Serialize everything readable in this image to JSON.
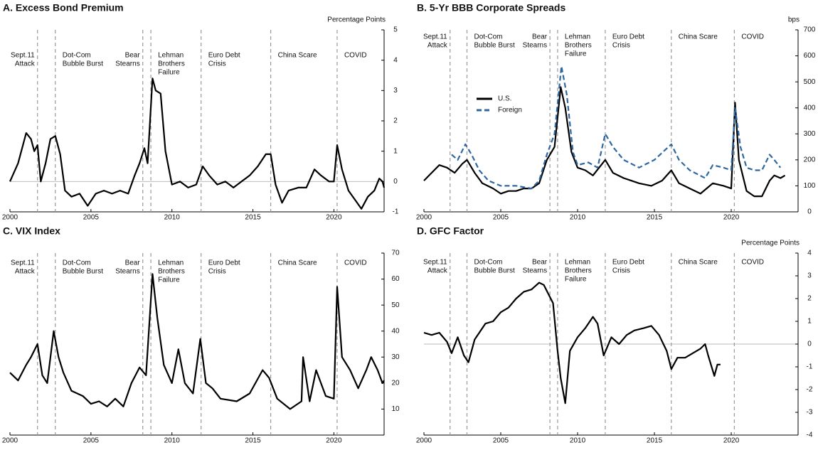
{
  "chart_data": [
    {
      "type": "line",
      "title": "A. Excess Bond Premium",
      "y_label": "Percentage Points",
      "xlim": [
        2000,
        2023.1
      ],
      "xticks": [
        2000,
        2005,
        2010,
        2015,
        2020
      ],
      "ylim": [
        -1,
        5
      ],
      "yticks": [
        -1,
        0,
        1,
        2,
        3,
        4,
        5
      ],
      "zero_line": true,
      "events": [
        {
          "x": 2001.7,
          "label": [
            "Sept.11",
            "Attack"
          ]
        },
        {
          "x": 2002.8,
          "label": [
            "Dot-Com",
            "Bubble Burst"
          ]
        },
        {
          "x": 2008.2,
          "label": [
            "Bear",
            "Stearns"
          ]
        },
        {
          "x": 2008.7,
          "label": [
            "Lehman",
            "Brothers",
            "Failure"
          ]
        },
        {
          "x": 2011.8,
          "label": [
            "Euro Debt",
            "Crisis"
          ]
        },
        {
          "x": 2016.1,
          "label": [
            "China Scare"
          ]
        },
        {
          "x": 2020.2,
          "label": [
            "COVID"
          ]
        }
      ],
      "series": [
        {
          "color": "#000000",
          "x": [
            2000,
            2000.5,
            2001,
            2001.3,
            2001.5,
            2001.7,
            2001.9,
            2002.2,
            2002.5,
            2002.8,
            2003.1,
            2003.4,
            2003.8,
            2004.3,
            2004.8,
            2005.3,
            2005.8,
            2006.3,
            2006.8,
            2007.3,
            2007.7,
            2008.0,
            2008.3,
            2008.5,
            2008.8,
            2009.0,
            2009.3,
            2009.6,
            2010.0,
            2010.5,
            2011.0,
            2011.5,
            2011.9,
            2012.3,
            2012.8,
            2013.3,
            2013.8,
            2014.3,
            2014.8,
            2015.3,
            2015.8,
            2016.1,
            2016.4,
            2016.8,
            2017.2,
            2017.8,
            2018.3,
            2018.8,
            2019.2,
            2019.7,
            2020.0,
            2020.2,
            2020.5,
            2020.9,
            2021.3,
            2021.7,
            2022.1,
            2022.5,
            2022.8,
            2023.0,
            2023.1
          ],
          "values": [
            0,
            0.6,
            1.6,
            1.4,
            1.0,
            1.2,
            0.0,
            0.6,
            1.4,
            1.5,
            0.9,
            -0.3,
            -0.5,
            -0.4,
            -0.8,
            -0.4,
            -0.3,
            -0.4,
            -0.3,
            -0.4,
            0.2,
            0.6,
            1.1,
            0.6,
            3.4,
            3.0,
            2.9,
            1.0,
            -0.1,
            0.0,
            -0.2,
            -0.1,
            0.5,
            0.2,
            -0.1,
            0.0,
            -0.2,
            0.0,
            0.2,
            0.5,
            0.9,
            0.9,
            -0.1,
            -0.7,
            -0.3,
            -0.2,
            -0.2,
            0.4,
            0.2,
            0.0,
            0.0,
            1.2,
            0.4,
            -0.3,
            -0.6,
            -0.9,
            -0.5,
            -0.3,
            0.1,
            0.0,
            -0.2
          ]
        }
      ]
    },
    {
      "type": "line",
      "title": "B. 5-Yr BBB Corporate Spreads",
      "y_label": "bps",
      "xlim": [
        2000,
        2024.35
      ],
      "xticks": [
        2000,
        2005,
        2010,
        2015,
        2020
      ],
      "ylim": [
        0,
        700
      ],
      "yticks": [
        0,
        100,
        200,
        300,
        400,
        500,
        600,
        700
      ],
      "legend": true,
      "events": [
        {
          "x": 2001.7,
          "label": [
            "Sept.11",
            "Attack"
          ]
        },
        {
          "x": 2002.8,
          "label": [
            "Dot-Com",
            "Bubble Burst"
          ]
        },
        {
          "x": 2008.2,
          "label": [
            "Bear",
            "Stearns"
          ]
        },
        {
          "x": 2008.7,
          "label": [
            "Lehman",
            "Brothers",
            "Failure"
          ]
        },
        {
          "x": 2011.8,
          "label": [
            "Euro Debt",
            "Crisis"
          ]
        },
        {
          "x": 2016.1,
          "label": [
            "China Scare"
          ]
        },
        {
          "x": 2020.2,
          "label": [
            "COVID"
          ]
        }
      ],
      "series": [
        {
          "name": "U.S.",
          "color": "#000000",
          "x": [
            2000,
            2000.5,
            2001,
            2001.5,
            2002,
            2002.5,
            2002.8,
            2003.3,
            2003.8,
            2004.5,
            2005,
            2005.5,
            2006,
            2006.5,
            2007,
            2007.5,
            2008,
            2008.5,
            2008.9,
            2009.2,
            2009.6,
            2010,
            2010.5,
            2011,
            2011.8,
            2012.3,
            2013,
            2014,
            2014.8,
            2015.5,
            2016.1,
            2016.6,
            2017.3,
            2018,
            2018.8,
            2019.5,
            2020,
            2020.25,
            2020.5,
            2021,
            2021.5,
            2022,
            2022.5,
            2022.8,
            2023.2,
            2023.5
          ],
          "values": [
            120,
            150,
            180,
            170,
            150,
            185,
            200,
            150,
            110,
            90,
            70,
            80,
            80,
            90,
            90,
            110,
            200,
            250,
            480,
            400,
            230,
            170,
            160,
            140,
            200,
            150,
            130,
            110,
            100,
            120,
            160,
            110,
            90,
            70,
            110,
            100,
            90,
            420,
            200,
            80,
            60,
            60,
            120,
            140,
            130,
            140
          ]
        },
        {
          "name": "Foreign",
          "color": "#2f67a0",
          "dash": true,
          "x": [
            2001.8,
            2002.2,
            2002.7,
            2003.1,
            2003.6,
            2004.2,
            2005,
            2006,
            2007,
            2007.5,
            2008,
            2008.5,
            2008.95,
            2009.3,
            2009.7,
            2010,
            2010.7,
            2011.3,
            2011.8,
            2012.3,
            2013,
            2014,
            2015,
            2016.1,
            2016.6,
            2017.3,
            2018.3,
            2018.8,
            2019.5,
            2020,
            2020.25,
            2020.6,
            2021,
            2021.5,
            2022,
            2022.5,
            2022.8,
            2023.2
          ],
          "values": [
            220,
            200,
            260,
            220,
            160,
            120,
            100,
            100,
            90,
            120,
            220,
            300,
            560,
            450,
            230,
            180,
            190,
            170,
            300,
            250,
            200,
            170,
            200,
            260,
            200,
            160,
            130,
            180,
            170,
            160,
            400,
            250,
            170,
            160,
            160,
            220,
            200,
            170
          ]
        }
      ]
    },
    {
      "type": "line",
      "title": "C. VIX Index",
      "xlim": [
        2000,
        2023.1
      ],
      "xticks": [
        2000,
        2005,
        2010,
        2015,
        2020
      ],
      "ylim": [
        0,
        70
      ],
      "yticks": [
        10,
        20,
        30,
        40,
        50,
        60,
        70
      ],
      "events": [
        {
          "x": 2001.7,
          "label": [
            "Sept.11",
            "Attack"
          ]
        },
        {
          "x": 2002.8,
          "label": [
            "Dot-Com",
            "Bubble Burst"
          ]
        },
        {
          "x": 2008.2,
          "label": [
            "Bear",
            "Stearns"
          ]
        },
        {
          "x": 2008.7,
          "label": [
            "Lehman",
            "Brothers",
            "Failure"
          ]
        },
        {
          "x": 2011.8,
          "label": [
            "Euro Debt",
            "Crisis"
          ]
        },
        {
          "x": 2016.1,
          "label": [
            "China Scare"
          ]
        },
        {
          "x": 2020.2,
          "label": [
            "COVID"
          ]
        }
      ],
      "series": [
        {
          "color": "#000000",
          "x": [
            2000,
            2000.5,
            2001,
            2001.3,
            2001.7,
            2002,
            2002.3,
            2002.7,
            2003,
            2003.3,
            2003.8,
            2004.5,
            2005,
            2005.5,
            2006,
            2006.5,
            2007,
            2007.5,
            2008,
            2008.4,
            2008.8,
            2009.1,
            2009.5,
            2010,
            2010.4,
            2010.8,
            2011.3,
            2011.75,
            2012.1,
            2012.5,
            2013,
            2014,
            2014.8,
            2015.6,
            2016,
            2016.5,
            2017.3,
            2018,
            2018.1,
            2018.5,
            2018.9,
            2019.5,
            2020,
            2020.2,
            2020.5,
            2021,
            2021.5,
            2022,
            2022.3,
            2022.7,
            2023,
            2023.1
          ],
          "values": [
            24,
            21,
            27,
            30,
            35,
            23,
            20,
            40,
            30,
            24,
            17,
            15,
            12,
            13,
            11,
            14,
            11,
            20,
            26,
            23,
            62,
            45,
            27,
            20,
            33,
            20,
            16,
            37,
            20,
            18,
            14,
            13,
            16,
            25,
            22,
            14,
            10,
            13,
            30,
            13,
            25,
            15,
            14,
            57,
            30,
            25,
            18,
            25,
            30,
            25,
            20,
            21
          ]
        }
      ]
    },
    {
      "type": "line",
      "title": "D. GFC Factor",
      "y_label": "Percentage Points",
      "xlim": [
        2000,
        2024.35
      ],
      "xticks": [
        2000,
        2005,
        2010,
        2015,
        2020
      ],
      "ylim": [
        -4,
        4
      ],
      "yticks": [
        -4,
        -3,
        -2,
        -1,
        0,
        1,
        2,
        3,
        4
      ],
      "zero_line": true,
      "events": [
        {
          "x": 2001.7,
          "label": [
            "Sept.11",
            "Attack"
          ]
        },
        {
          "x": 2002.8,
          "label": [
            "Dot-Com",
            "Bubble Burst"
          ]
        },
        {
          "x": 2008.2,
          "label": [
            "Bear",
            "Stearns"
          ]
        },
        {
          "x": 2008.7,
          "label": [
            "Lehman",
            "Brothers",
            "Failure"
          ]
        },
        {
          "x": 2011.8,
          "label": [
            "Euro Debt",
            "Crisis"
          ]
        },
        {
          "x": 2016.1,
          "label": [
            "China Scare"
          ]
        },
        {
          "x": 2020.2,
          "label": [
            "COVID"
          ]
        }
      ],
      "series": [
        {
          "color": "#000000",
          "x": [
            2000,
            2000.5,
            2001,
            2001.5,
            2001.8,
            2002.2,
            2002.6,
            2002.9,
            2003.3,
            2004,
            2004.5,
            2005,
            2005.5,
            2006,
            2006.5,
            2007,
            2007.5,
            2007.8,
            2008.1,
            2008.4,
            2008.7,
            2008.9,
            2009.2,
            2009.5,
            2010,
            2010.5,
            2011,
            2011.3,
            2011.7,
            2012.2,
            2012.7,
            2013.2,
            2013.7,
            2014.3,
            2014.8,
            2015.3,
            2015.8,
            2016.1,
            2016.5,
            2017,
            2017.5,
            2018,
            2018.3,
            2018.5,
            2018.9,
            2019.1,
            2019.3
          ],
          "values": [
            0.5,
            0.4,
            0.5,
            0.1,
            -0.4,
            0.3,
            -0.5,
            -0.8,
            0.2,
            0.9,
            1.0,
            1.4,
            1.6,
            2.0,
            2.3,
            2.4,
            2.7,
            2.6,
            2.2,
            1.8,
            -0.3,
            -1.5,
            -2.6,
            -0.3,
            0.3,
            0.7,
            1.2,
            0.9,
            -0.5,
            0.3,
            0.0,
            0.4,
            0.6,
            0.7,
            0.8,
            0.4,
            -0.3,
            -1.1,
            -0.6,
            -0.6,
            -0.4,
            -0.2,
            0.0,
            -0.5,
            -1.4,
            -0.9,
            -0.9
          ]
        }
      ]
    }
  ]
}
